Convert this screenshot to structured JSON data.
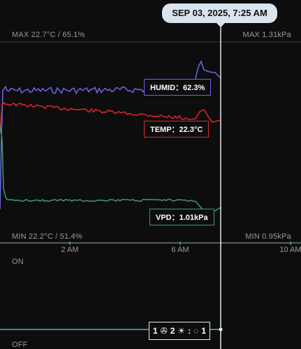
{
  "tooltip": {
    "datetime": "SEP 03, 2025, 7:25 AM"
  },
  "chart_data": {
    "type": "line",
    "x_ticks": [
      "2 AM",
      "6 AM",
      "10 AM"
    ],
    "max_left": "MAX 22.7°C / 65.1%",
    "max_right": "MAX 1.31kPa",
    "min_left": "MIN 22.2°C / 51.4%",
    "min_right": "MIN 0.95kPa",
    "series": [
      {
        "name": "HUMID",
        "label": "HUMID：62.3%",
        "color": "#6a67f0"
      },
      {
        "name": "TEMP",
        "label": "TEMP：22.3°C",
        "color": "#e0262b"
      },
      {
        "name": "VPD",
        "label": "VPD：1.01kPa",
        "color": "#3d9b75"
      }
    ],
    "outlet": {
      "on_label": "ON",
      "off_label": "OFF",
      "color": "#3fb6d9"
    }
  },
  "devices": {
    "fan_count": "1",
    "fan_icon": "fan-icon",
    "light_count": "2",
    "light_icon": "grow-light-icon",
    "loop_count": "1",
    "loop_icon": "loop-icon"
  }
}
